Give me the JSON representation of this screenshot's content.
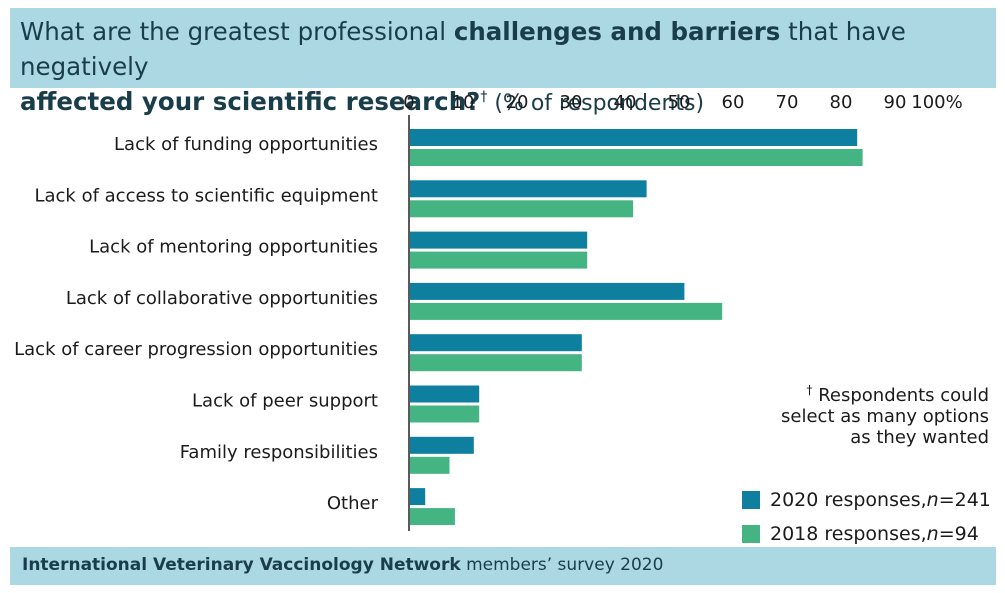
{
  "header": {
    "title_pre": "What are the greatest professional ",
    "title_bold": "challenges and barriers",
    "title_post": " that have negatively",
    "title_line2": "affected your scientific research?",
    "title_dagger": "†",
    "title_unit": " (% of respondents)"
  },
  "footnote": {
    "dagger": "†",
    "line1": " Respondents could",
    "line2": "select as many options",
    "line3": "as they wanted"
  },
  "legend": {
    "items": [
      {
        "prefix": "2020 responses, ",
        "n_label": "n",
        "n_value": "=241",
        "color": "#0f7fa0"
      },
      {
        "prefix": "2018 responses, ",
        "n_label": "n",
        "n_value": "=94",
        "color": "#45b483"
      }
    ]
  },
  "footer": {
    "org": "International Veterinary Vaccinology Network",
    "rest": " members’ survey 2020"
  },
  "chart_data": {
    "type": "bar",
    "orientation": "horizontal",
    "categories": [
      "Lack of funding opportunities",
      "Lack of access to scientific equipment",
      "Lack of mentoring opportunities",
      "Lack of collaborative opportunities",
      "Lack of career progression opportunities",
      "Lack of peer support",
      "Family responsibilities",
      "Other"
    ],
    "series": [
      {
        "name": "2020 responses, n=241",
        "color": "#0f7fa0",
        "values": [
          83,
          44,
          33,
          51,
          32,
          13,
          12,
          3
        ]
      },
      {
        "name": "2018 responses, n=94",
        "color": "#45b483",
        "values": [
          84,
          41.5,
          33,
          58,
          32,
          13,
          7.5,
          8.5
        ]
      }
    ],
    "xlim": [
      0,
      100
    ],
    "xticks": [
      0,
      10,
      20,
      30,
      40,
      50,
      60,
      70,
      80,
      90,
      100
    ],
    "xtick_labels": [
      "0",
      "10",
      "20",
      "30",
      "40",
      "50",
      "60",
      "70",
      "80",
      "90",
      "100%"
    ],
    "axis_position": "top",
    "grid": false
  }
}
